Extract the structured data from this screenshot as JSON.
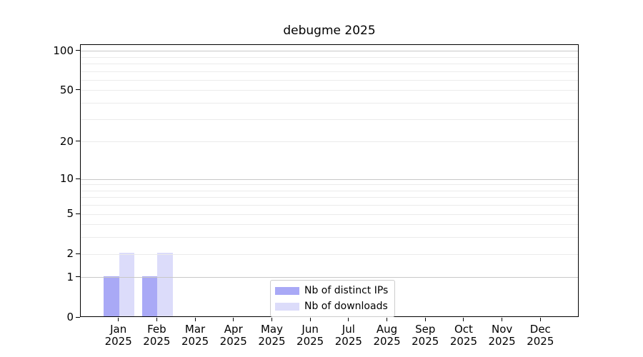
{
  "chart_data": {
    "type": "bar",
    "title": "debugme 2025",
    "months": [
      "Jan",
      "Feb",
      "Mar",
      "Apr",
      "May",
      "Jun",
      "Jul",
      "Aug",
      "Sep",
      "Oct",
      "Nov",
      "Dec"
    ],
    "year": "2025",
    "categories": [
      "Jan 2025",
      "Feb 2025",
      "Mar 2025",
      "Apr 2025",
      "May 2025",
      "Jun 2025",
      "Jul 2025",
      "Aug 2025",
      "Sep 2025",
      "Oct 2025",
      "Nov 2025",
      "Dec 2025"
    ],
    "series": [
      {
        "name": "Nb of distinct IPs",
        "color": "#a9a9f6",
        "values": [
          1,
          1,
          0,
          0,
          0,
          0,
          0,
          0,
          0,
          0,
          0,
          0
        ]
      },
      {
        "name": "Nb of downloads",
        "color": "#dcdcfa",
        "values": [
          2,
          2,
          0,
          0,
          0,
          0,
          0,
          0,
          0,
          0,
          0,
          0
        ]
      }
    ],
    "xlabel": "",
    "ylabel": "",
    "y_axis": {
      "scale": "log10(1+y)",
      "ticks": [
        0,
        1,
        2,
        5,
        10,
        20,
        50,
        100
      ],
      "ylim": [
        0,
        112
      ]
    },
    "grid": {
      "on": true,
      "drawn_above_bars": true,
      "major_lines_at": [
        1,
        10,
        100
      ],
      "minor_lines_at": [
        2,
        3,
        4,
        5,
        6,
        7,
        8,
        9,
        20,
        30,
        40,
        50,
        60,
        70,
        80,
        90
      ],
      "major_color": "#c8c8c8",
      "minor_color": "#ebebeb"
    },
    "legend": {
      "position": "bottom-center-inside",
      "entries": [
        "Nb of distinct IPs",
        "Nb of downloads"
      ]
    },
    "colors": {
      "background": "#ffffff",
      "spine": "#000000",
      "text": "#000000",
      "legend_border": "#cccccc"
    }
  }
}
